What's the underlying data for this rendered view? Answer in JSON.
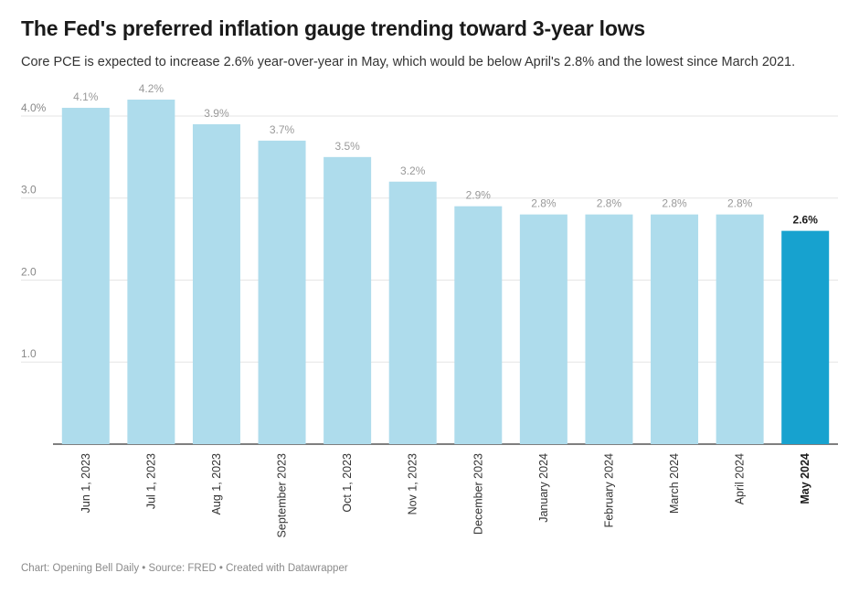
{
  "chart_data": {
    "type": "bar",
    "title": "The Fed's preferred inflation gauge trending toward 3-year lows",
    "subtitle": "Core PCE is expected to increase 2.6% year-over-year in May, which would be below April's 2.8% and the lowest since March 2021.",
    "categories": [
      "Jun 1, 2023",
      "Jul 1, 2023",
      "Aug 1, 2023",
      "September 2023",
      "Oct 1, 2023",
      "Nov 1, 2023",
      "December 2023",
      "January 2024",
      "February 2024",
      "March 2024",
      "April 2024",
      "May 2024"
    ],
    "values": [
      4.1,
      4.2,
      3.9,
      3.7,
      3.5,
      3.2,
      2.9,
      2.8,
      2.8,
      2.8,
      2.8,
      2.6
    ],
    "value_labels": [
      "4.1%",
      "4.2%",
      "3.9%",
      "3.7%",
      "3.5%",
      "3.2%",
      "2.9%",
      "2.8%",
      "2.8%",
      "2.8%",
      "2.8%",
      "2.6%"
    ],
    "y_ticks": [
      1.0,
      2.0,
      3.0,
      4.0
    ],
    "y_tick_labels": [
      "1.0",
      "2.0",
      "3.0",
      "4.0%"
    ],
    "ylim": [
      0,
      4.2
    ],
    "highlight_index": 11,
    "xlabel": "",
    "ylabel": "",
    "grid": true,
    "colors": {
      "bar": "#aedcec",
      "highlight": "#17a2cf"
    }
  },
  "footer": "Chart: Opening Bell Daily • Source: FRED • Created with Datawrapper"
}
